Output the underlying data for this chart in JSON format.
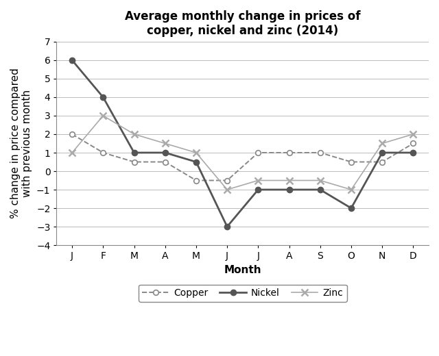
{
  "title": "Average monthly change in prices of\ncopper, nickel and zinc (2014)",
  "xlabel": "Month",
  "ylabel": "% change in price compared\nwith previous month",
  "months": [
    "J",
    "F",
    "M",
    "A",
    "M",
    "J",
    "J",
    "A",
    "S",
    "O",
    "N",
    "D"
  ],
  "copper": [
    2,
    1,
    0.5,
    0.5,
    -0.5,
    -0.5,
    1,
    1,
    1,
    0.5,
    0.5,
    1.5
  ],
  "nickel": [
    6,
    4,
    1,
    1,
    0.5,
    -3,
    -1,
    -1,
    -1,
    -2,
    1,
    1
  ],
  "zinc": [
    1,
    3,
    2,
    1.5,
    1,
    -1,
    -0.5,
    -0.5,
    -0.5,
    -1,
    1.5,
    2
  ],
  "ylim": [
    -4,
    7
  ],
  "yticks": [
    -4,
    -3,
    -2,
    -1,
    0,
    1,
    2,
    3,
    4,
    5,
    6,
    7
  ],
  "copper_color": "#888888",
  "nickel_color": "#555555",
  "zinc_color": "#aaaaaa",
  "background_color": "#ffffff",
  "grid_color": "#bbbbbb",
  "title_fontsize": 12,
  "label_fontsize": 11,
  "tick_fontsize": 10,
  "legend_fontsize": 10
}
